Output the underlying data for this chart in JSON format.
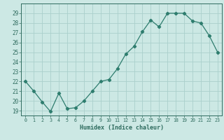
{
  "x": [
    0,
    1,
    2,
    3,
    4,
    5,
    6,
    7,
    8,
    9,
    10,
    11,
    12,
    13,
    14,
    15,
    16,
    17,
    18,
    19,
    20,
    21,
    22,
    23
  ],
  "y": [
    22.0,
    21.0,
    19.9,
    18.9,
    20.8,
    19.2,
    19.3,
    20.0,
    21.0,
    22.0,
    22.2,
    23.3,
    24.8,
    25.6,
    27.1,
    28.3,
    27.6,
    29.0,
    29.0,
    29.0,
    28.2,
    28.0,
    26.7,
    25.0
  ],
  "xlabel": "Humidex (Indice chaleur)",
  "ylim": [
    18.5,
    30.0
  ],
  "xlim": [
    -0.5,
    23.5
  ],
  "yticks": [
    19,
    20,
    21,
    22,
    23,
    24,
    25,
    26,
    27,
    28,
    29
  ],
  "xticks": [
    0,
    1,
    2,
    3,
    4,
    5,
    6,
    7,
    8,
    9,
    10,
    11,
    12,
    13,
    14,
    15,
    16,
    17,
    18,
    19,
    20,
    21,
    22,
    23
  ],
  "line_color": "#2e7d6e",
  "marker_color": "#2e7d6e",
  "bg_color": "#cce8e4",
  "grid_color": "#aad0cc",
  "tick_color": "#2e6b5e",
  "label_color": "#2e6b5e",
  "spine_color": "#2e6b5e"
}
